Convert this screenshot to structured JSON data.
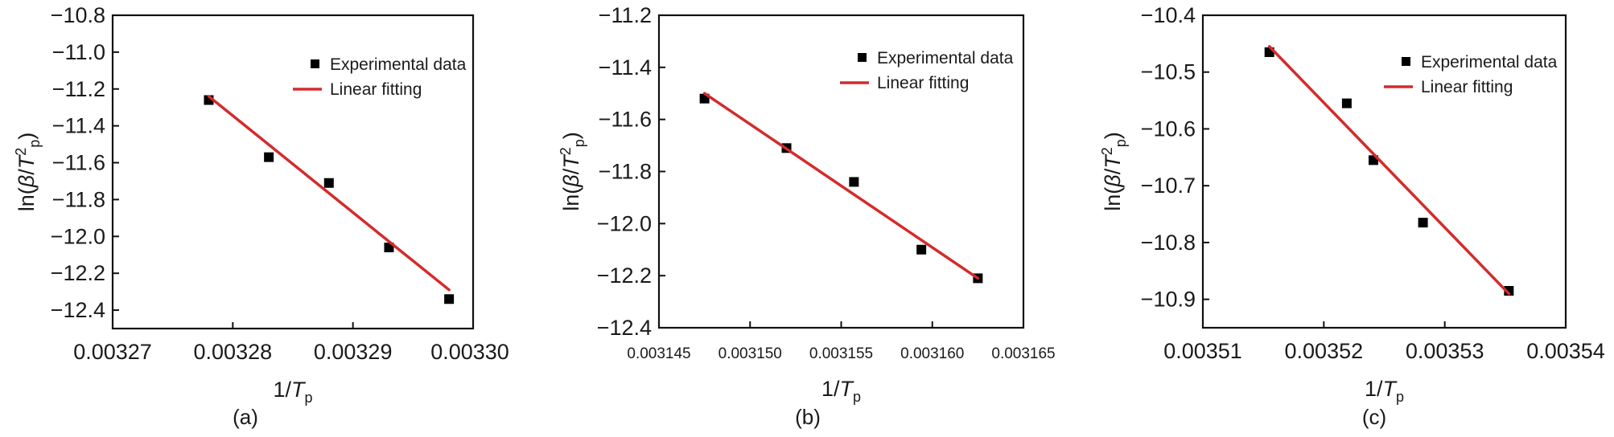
{
  "chart_data": [
    {
      "type": "scatter",
      "panel_label": "(a)",
      "xlabel": {
        "base": "1/",
        "var": "T",
        "sub": "p"
      },
      "ylabel": {
        "pre": "ln(",
        "beta": "β",
        "slash": "/",
        "var": "T",
        "sup": "2",
        "sub": "p",
        "post": ")"
      },
      "xlim": [
        0.00327,
        0.0033
      ],
      "ylim": [
        -12.5,
        -10.8
      ],
      "xticks": [
        0.00327,
        0.00328,
        0.00329,
        0.0033
      ],
      "xtick_labels": [
        "0.00327",
        "0.00328",
        "0.00329",
        "0.00330"
      ],
      "yticks": [
        -10.8,
        -11.0,
        -11.2,
        -11.4,
        -11.6,
        -11.8,
        -12.0,
        -12.2,
        -12.4
      ],
      "ytick_labels": [
        "−10.8",
        "−11.0",
        "−11.2",
        "−11.4",
        "−11.6",
        "−11.8",
        "−12.0",
        "−12.2",
        "−12.4"
      ],
      "series": [
        {
          "name": "Experimental data",
          "kind": "points",
          "color": "#000000",
          "x": [
            0.003278,
            0.003283,
            0.003288,
            0.003293,
            0.003298
          ],
          "y": [
            -11.26,
            -11.57,
            -11.71,
            -12.06,
            -12.34
          ]
        },
        {
          "name": "Linear fitting",
          "kind": "line",
          "color": "#d42b2b",
          "x": [
            0.003278,
            0.003298
          ],
          "y": [
            -11.24,
            -12.29
          ]
        }
      ],
      "legend_position": "top-right"
    },
    {
      "type": "scatter",
      "panel_label": "(b)",
      "xlabel": {
        "base": "1/",
        "var": "T",
        "sub": "p"
      },
      "ylabel": {
        "pre": "ln(",
        "beta": "β",
        "slash": "/",
        "var": "T",
        "sup": "2",
        "sub": "p",
        "post": ")"
      },
      "xlim": [
        0.003145,
        0.003165
      ],
      "ylim": [
        -12.4,
        -11.2
      ],
      "xticks": [
        0.003145,
        0.00315,
        0.003155,
        0.00316,
        0.003165
      ],
      "xtick_labels": [
        "0.003145",
        "0.003150",
        "0.003155",
        "0.003160",
        "0.003165"
      ],
      "yticks": [
        -11.2,
        -11.4,
        -11.6,
        -11.8,
        -12.0,
        -12.2,
        -12.4
      ],
      "ytick_labels": [
        "−11.2",
        "−11.4",
        "−11.6",
        "−11.8",
        "−12.0",
        "−12.2",
        "−12.4"
      ],
      "series": [
        {
          "name": "Experimental data",
          "kind": "points",
          "color": "#000000",
          "x": [
            0.0031475,
            0.003152,
            0.0031557,
            0.0031594,
            0.0031625
          ],
          "y": [
            -11.52,
            -11.71,
            -11.84,
            -12.1,
            -12.21
          ]
        },
        {
          "name": "Linear fitting",
          "kind": "line",
          "color": "#d42b2b",
          "x": [
            0.0031475,
            0.0031625
          ],
          "y": [
            -11.5,
            -12.21
          ]
        }
      ],
      "legend_position": "top-right"
    },
    {
      "type": "scatter",
      "panel_label": "(c)",
      "xlabel": {
        "base": "1/",
        "var": "T",
        "sub": "p"
      },
      "ylabel": {
        "pre": "ln(",
        "beta": "β",
        "slash": "/",
        "var": "T",
        "sup": "2",
        "sub": "p",
        "post": ")"
      },
      "xlim": [
        0.00351,
        0.00354
      ],
      "ylim": [
        -10.95,
        -10.4
      ],
      "xticks": [
        0.00351,
        0.00352,
        0.00353,
        0.00354
      ],
      "xtick_labels": [
        "0.00351",
        "0.00352",
        "0.00353",
        "0.00354"
      ],
      "yticks": [
        -10.4,
        -10.5,
        -10.6,
        -10.7,
        -10.8,
        -10.9
      ],
      "ytick_labels": [
        "−10.4",
        "−10.5",
        "−10.6",
        "−10.7",
        "−10.8",
        "−10.9"
      ],
      "series": [
        {
          "name": "Experimental data",
          "kind": "points",
          "color": "#000000",
          "x": [
            0.0035155,
            0.0035219,
            0.0035241,
            0.0035282,
            0.0035353
          ],
          "y": [
            -10.465,
            -10.555,
            -10.655,
            -10.765,
            -10.885
          ]
        },
        {
          "name": "Linear fitting",
          "kind": "line",
          "color": "#d42b2b",
          "x": [
            0.0035155,
            0.0035353
          ],
          "y": [
            -10.455,
            -10.89
          ]
        }
      ],
      "legend_position": "top-right"
    }
  ]
}
